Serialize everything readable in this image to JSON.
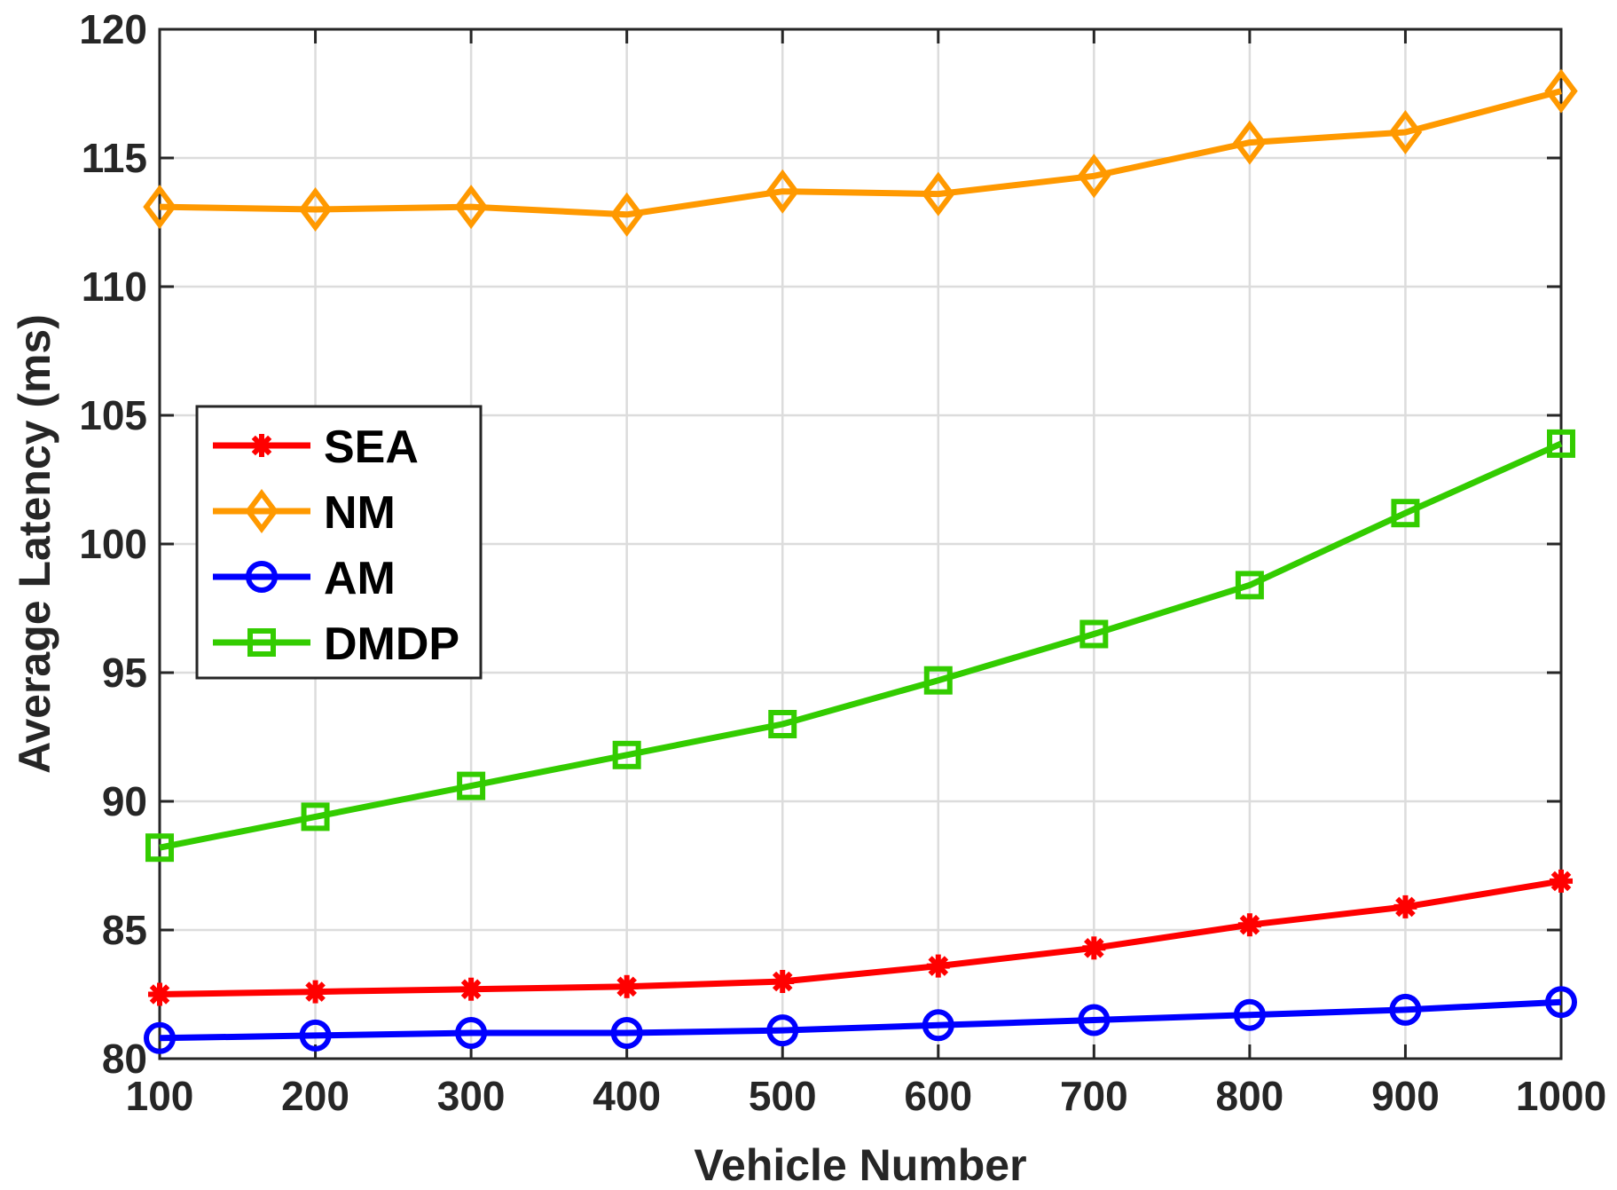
{
  "chart_data": {
    "type": "line",
    "title": "",
    "xlabel": "Vehicle Number",
    "ylabel": "Average Latency (ms)",
    "x": [
      100,
      200,
      300,
      400,
      500,
      600,
      700,
      800,
      900,
      1000
    ],
    "xlim": [
      100,
      1000
    ],
    "ylim": [
      80,
      120
    ],
    "xticks": [
      "100",
      "200",
      "300",
      "400",
      "500",
      "600",
      "700",
      "800",
      "900",
      "1000"
    ],
    "yticks": [
      "80",
      "85",
      "90",
      "95",
      "100",
      "105",
      "110",
      "115",
      "120"
    ],
    "grid": true,
    "legend_position": "middle-left",
    "series": [
      {
        "name": "SEA",
        "color": "#ff0000",
        "marker": "asterisk",
        "values": [
          82.5,
          82.6,
          82.7,
          82.8,
          83.0,
          83.6,
          84.3,
          85.2,
          85.9,
          86.9
        ]
      },
      {
        "name": "NM",
        "color": "#ff9900",
        "marker": "diamond",
        "values": [
          113.1,
          113.0,
          113.1,
          112.8,
          113.7,
          113.6,
          114.3,
          115.6,
          116.0,
          117.6
        ]
      },
      {
        "name": "AM",
        "color": "#0000ff",
        "marker": "circle",
        "values": [
          80.8,
          80.9,
          81.0,
          81.0,
          81.1,
          81.3,
          81.5,
          81.7,
          81.9,
          82.2
        ]
      },
      {
        "name": "DMDP",
        "color": "#33cc00",
        "marker": "square",
        "values": [
          88.2,
          89.4,
          90.6,
          91.8,
          93.0,
          94.7,
          96.5,
          98.4,
          101.2,
          103.9
        ]
      }
    ]
  }
}
